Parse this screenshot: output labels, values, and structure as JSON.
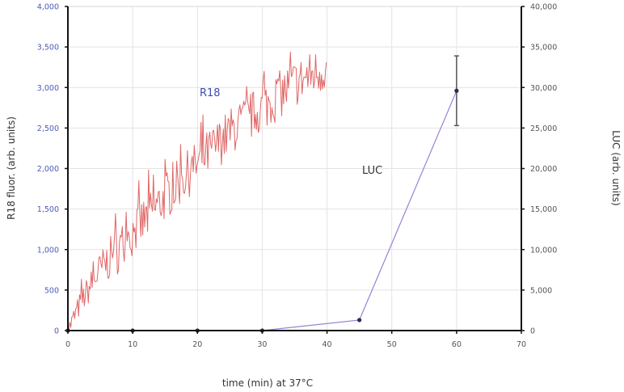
{
  "chart_data": {
    "type": "line",
    "title": "",
    "xlabel": "time (min) at 37°C",
    "ylabel": "R18 fluor. (arb. units)",
    "y2label": "LUC (arb. units)",
    "xlim": [
      0,
      70
    ],
    "ylim": [
      0,
      4000
    ],
    "y2lim": [
      0,
      40000
    ],
    "x_ticks": [
      "0",
      "10",
      "20",
      "30",
      "40",
      "50",
      "60",
      "70"
    ],
    "y_ticks": [
      "0",
      "500",
      "1,000",
      "1,500",
      "2,000",
      "2,500",
      "3,000",
      "3,500",
      "4,000"
    ],
    "y2_ticks": [
      "0",
      "5,000",
      "10,000",
      "15,000",
      "20,000",
      "25,000",
      "30,000",
      "35,000",
      "40,000"
    ],
    "grid": true,
    "legend": "none (inline annotations)",
    "annotations": [
      {
        "text": "R18",
        "x": 21,
        "y": 2950,
        "color": "#3a4db0"
      },
      {
        "text": "LUC",
        "x": 46,
        "y": 1980,
        "color": "#333333"
      }
    ],
    "series": [
      {
        "name": "R18",
        "axis": "left",
        "color": "#e06666",
        "style": "noisy line, ~0.15 min sampling",
        "trend": {
          "x_start": 0,
          "x_end": 40,
          "y_start": 0,
          "y_end": 3250,
          "noise_amplitude": 300
        },
        "approx_points": [
          [
            0,
            0
          ],
          [
            2,
            350
          ],
          [
            5,
            750
          ],
          [
            10,
            1200
          ],
          [
            15,
            1650
          ],
          [
            20,
            2050
          ],
          [
            25,
            2450
          ],
          [
            30,
            2750
          ],
          [
            35,
            3050
          ],
          [
            40,
            3250
          ]
        ]
      },
      {
        "name": "LUC",
        "axis": "right",
        "color": "#9b7fd4",
        "marker_color": "#2a2a4a",
        "x": [
          0,
          10,
          20,
          30,
          45,
          60
        ],
        "y": [
          0,
          0,
          0,
          0,
          1300,
          29600
        ],
        "error_bars": [
          null,
          null,
          null,
          null,
          null,
          {
            "low": 25300,
            "high": 33900
          }
        ]
      }
    ]
  }
}
